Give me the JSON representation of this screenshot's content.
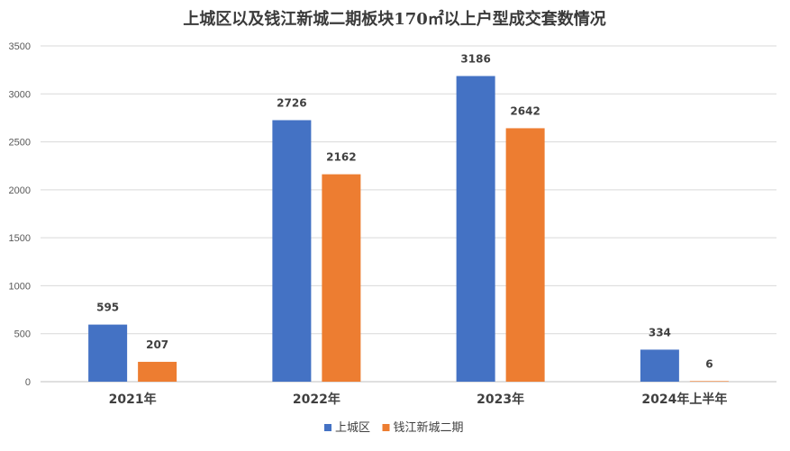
{
  "chart_data": {
    "type": "bar",
    "title": "上城区以及钱江新城二期板块170㎡以上户型成交套数情况",
    "categories": [
      "2021年",
      "2022年",
      "2023年",
      "2024年上半年"
    ],
    "series": [
      {
        "name": "上城区",
        "values": [
          595,
          2726,
          3186,
          334
        ],
        "color": "#4472C4"
      },
      {
        "name": "钱江新城二期",
        "values": [
          207,
          2162,
          2642,
          6
        ],
        "color": "#ED7D31"
      }
    ],
    "ylim": [
      0,
      3500
    ],
    "yticks": [
      0,
      500,
      1000,
      1500,
      2000,
      2500,
      3000,
      3500
    ],
    "grid": true,
    "legend_position": "bottom"
  }
}
